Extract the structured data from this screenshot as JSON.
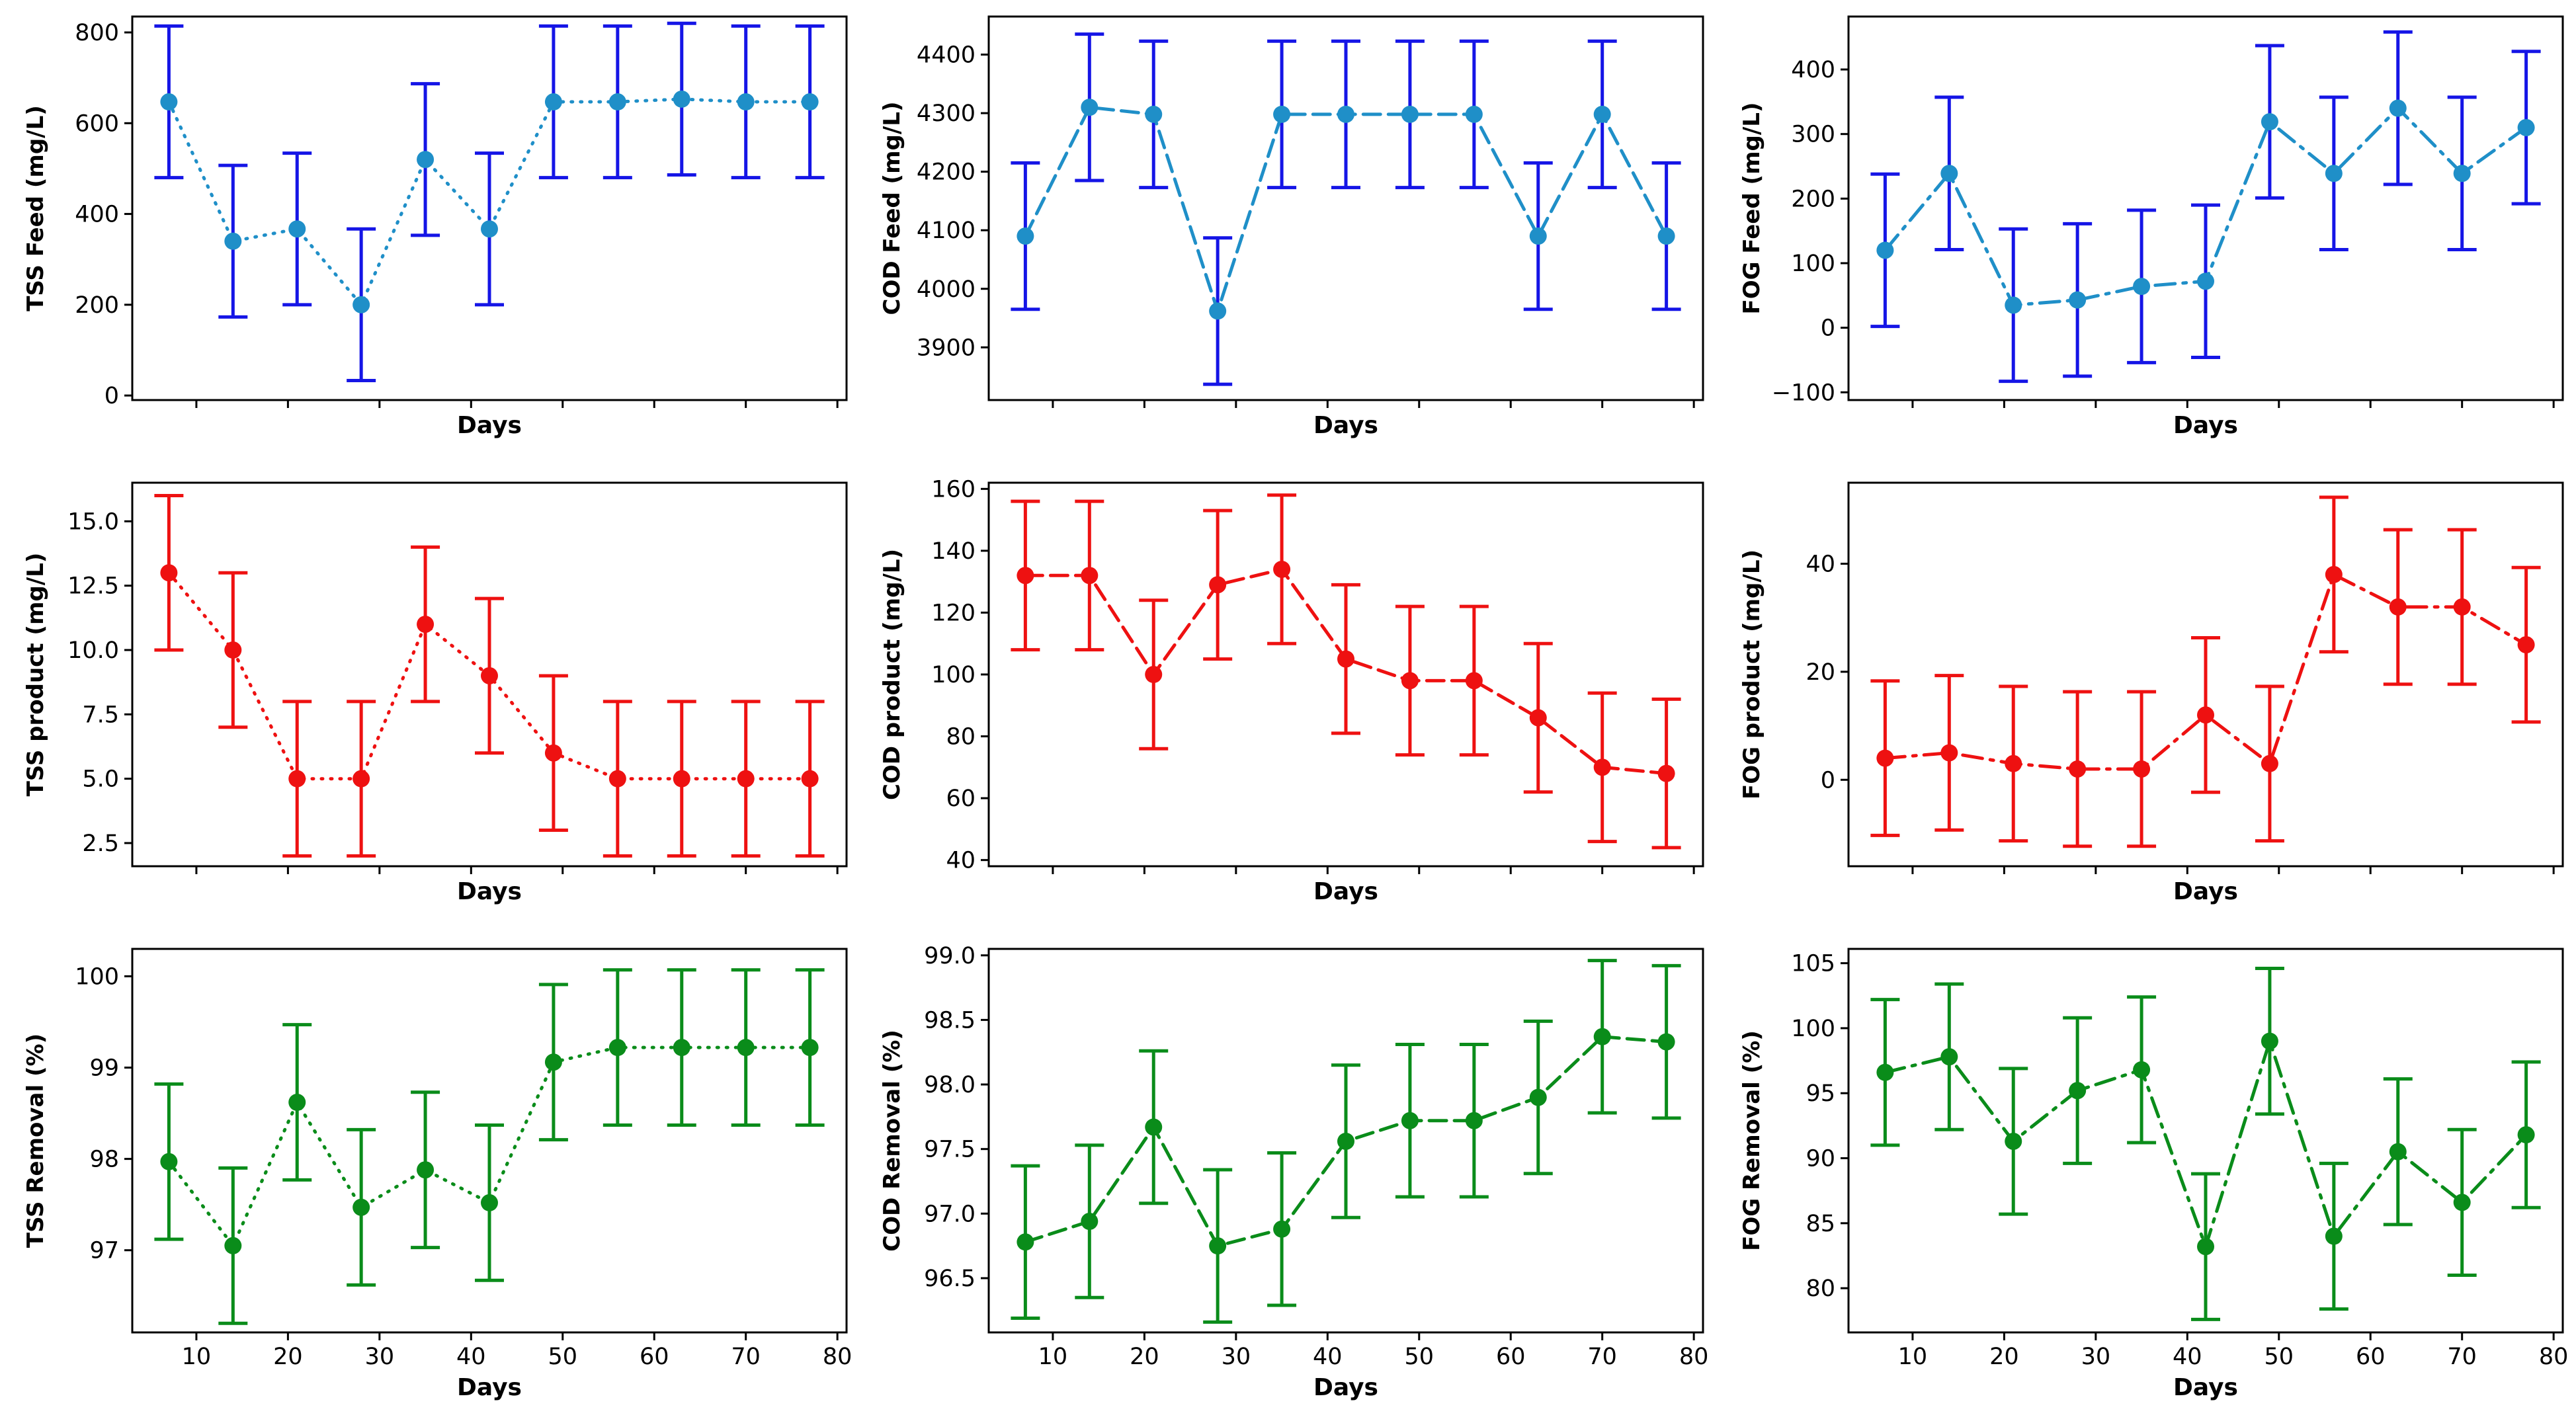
{
  "figure": {
    "x_shared_label": "Days"
  },
  "chart_data": [
    {
      "type": "line",
      "title": "",
      "xlabel": "Days",
      "ylabel": "TSS Feed (mg/L)",
      "xlim": [
        3,
        81
      ],
      "ylim": [
        -10,
        835
      ],
      "xticks": [
        10,
        20,
        30,
        40,
        50,
        60,
        70,
        80
      ],
      "yticks": [
        0,
        200,
        400,
        600,
        800
      ],
      "ytick_labels": [
        "0",
        "200",
        "400",
        "600",
        "800"
      ],
      "x": [
        7,
        14,
        21,
        28,
        35,
        42,
        49,
        56,
        63,
        70,
        77
      ],
      "values": [
        647,
        340,
        367,
        200,
        520,
        367,
        647,
        647,
        653,
        647,
        647
      ],
      "errors": [
        167,
        167,
        167,
        167,
        167,
        167,
        167,
        167,
        167,
        167,
        167
      ],
      "line_color": "#1f8fc8",
      "error_color": "#1515e6",
      "dash": "dotted"
    },
    {
      "type": "line",
      "title": "",
      "xlabel": "Days",
      "ylabel": "COD Feed (mg/L)",
      "xlim": [
        3,
        81
      ],
      "ylim": [
        3810,
        4465
      ],
      "xticks": [
        10,
        20,
        30,
        40,
        50,
        60,
        70,
        80
      ],
      "yticks": [
        3900,
        4000,
        4100,
        4200,
        4300,
        4400
      ],
      "ytick_labels": [
        "3900",
        "4000",
        "4100",
        "4200",
        "4300",
        "4400"
      ],
      "x": [
        7,
        14,
        21,
        28,
        35,
        42,
        49,
        56,
        63,
        70,
        77
      ],
      "values": [
        4090,
        4310,
        4298,
        3962,
        4298,
        4298,
        4298,
        4298,
        4090,
        4298,
        4090
      ],
      "errors": [
        125,
        125,
        125,
        125,
        125,
        125,
        125,
        125,
        125,
        125,
        125
      ],
      "line_color": "#1f8fc8",
      "error_color": "#1515e6",
      "dash": "dashed"
    },
    {
      "type": "line",
      "title": "",
      "xlabel": "Days",
      "ylabel": "FOG Feed (mg/L)",
      "xlim": [
        3,
        81
      ],
      "ylim": [
        -112,
        482
      ],
      "xticks": [
        10,
        20,
        30,
        40,
        50,
        60,
        70,
        80
      ],
      "yticks": [
        -100,
        0,
        100,
        200,
        300,
        400
      ],
      "ytick_labels": [
        "−100",
        "0",
        "100",
        "200",
        "300",
        "400"
      ],
      "x": [
        7,
        14,
        21,
        28,
        35,
        42,
        49,
        56,
        63,
        70,
        77
      ],
      "values": [
        120,
        239,
        35,
        43,
        64,
        72,
        319,
        239,
        340,
        239,
        310
      ],
      "errors": [
        118,
        118,
        118,
        118,
        118,
        118,
        118,
        118,
        118,
        118,
        118
      ],
      "line_color": "#1f8fc8",
      "error_color": "#1515e6",
      "dash": "dashdot"
    },
    {
      "type": "line",
      "title": "",
      "xlabel": "Days",
      "ylabel": "TSS product (mg/L)",
      "xlim": [
        3,
        81
      ],
      "ylim": [
        1.6,
        16.5
      ],
      "xticks": [
        10,
        20,
        30,
        40,
        50,
        60,
        70,
        80
      ],
      "yticks": [
        2.5,
        5.0,
        7.5,
        10.0,
        12.5,
        15.0
      ],
      "ytick_labels": [
        "2.5",
        "5.0",
        "7.5",
        "10.0",
        "12.5",
        "15.0"
      ],
      "x": [
        7,
        14,
        21,
        28,
        35,
        42,
        49,
        56,
        63,
        70,
        77
      ],
      "values": [
        13,
        10,
        5,
        5,
        11,
        9,
        6,
        5,
        5,
        5,
        5
      ],
      "errors": [
        3,
        3,
        3,
        3,
        3,
        3,
        3,
        3,
        3,
        3,
        3
      ],
      "line_color": "#ee1111",
      "error_color": "#ee1111",
      "dash": "dotted"
    },
    {
      "type": "line",
      "title": "",
      "xlabel": "Days",
      "ylabel": "COD product (mg/L)",
      "xlim": [
        3,
        81
      ],
      "ylim": [
        38,
        162
      ],
      "xticks": [
        10,
        20,
        30,
        40,
        50,
        60,
        70,
        80
      ],
      "yticks": [
        40,
        60,
        80,
        100,
        120,
        140,
        160
      ],
      "ytick_labels": [
        "40",
        "60",
        "80",
        "100",
        "120",
        "140",
        "160"
      ],
      "x": [
        7,
        14,
        21,
        28,
        35,
        42,
        49,
        56,
        63,
        70,
        77
      ],
      "values": [
        132,
        132,
        100,
        129,
        134,
        105,
        98,
        98,
        86,
        70,
        68
      ],
      "errors": [
        24,
        24,
        24,
        24,
        24,
        24,
        24,
        24,
        24,
        24,
        24
      ],
      "line_color": "#ee1111",
      "error_color": "#ee1111",
      "dash": "dashed"
    },
    {
      "type": "line",
      "title": "",
      "xlabel": "Days",
      "ylabel": "FOG product (mg/L)",
      "xlim": [
        3,
        81
      ],
      "ylim": [
        -16,
        55
      ],
      "xticks": [
        10,
        20,
        30,
        40,
        50,
        60,
        70,
        80
      ],
      "yticks": [
        0,
        20,
        40
      ],
      "ytick_labels": [
        "0",
        "20",
        "40"
      ],
      "x": [
        7,
        14,
        21,
        28,
        35,
        42,
        49,
        56,
        63,
        70,
        77
      ],
      "values": [
        4,
        5,
        3,
        2,
        2,
        12,
        3,
        38,
        32,
        32,
        25
      ],
      "errors": [
        14.3,
        14.3,
        14.3,
        14.3,
        14.3,
        14.3,
        14.3,
        14.3,
        14.3,
        14.3,
        14.3
      ],
      "line_color": "#ee1111",
      "error_color": "#ee1111",
      "dash": "dashdot"
    },
    {
      "type": "line",
      "title": "",
      "xlabel": "Days",
      "ylabel": "TSS Removal (%)",
      "xlim": [
        3,
        81
      ],
      "ylim": [
        96.1,
        100.3
      ],
      "xticks": [
        10,
        20,
        30,
        40,
        50,
        60,
        70,
        80
      ],
      "yticks": [
        97,
        98,
        99,
        100
      ],
      "ytick_labels": [
        "97",
        "98",
        "99",
        "100"
      ],
      "x": [
        7,
        14,
        21,
        28,
        35,
        42,
        49,
        56,
        63,
        70,
        77
      ],
      "values": [
        97.97,
        97.05,
        98.62,
        97.47,
        97.88,
        97.52,
        99.06,
        99.22,
        99.22,
        99.22,
        99.22
      ],
      "errors": [
        0.85,
        0.85,
        0.85,
        0.85,
        0.85,
        0.85,
        0.85,
        0.85,
        0.85,
        0.85,
        0.85
      ],
      "line_color": "#0a8c1a",
      "error_color": "#0a8c1a",
      "dash": "dotted"
    },
    {
      "type": "line",
      "title": "",
      "xlabel": "Days",
      "ylabel": "COD Removal (%)",
      "xlim": [
        3,
        81
      ],
      "ylim": [
        96.08,
        99.05
      ],
      "xticks": [
        10,
        20,
        30,
        40,
        50,
        60,
        70,
        80
      ],
      "yticks": [
        96.5,
        97.0,
        97.5,
        98.0,
        98.5,
        99.0
      ],
      "ytick_labels": [
        "96.5",
        "97.0",
        "97.5",
        "98.0",
        "98.5",
        "99.0"
      ],
      "x": [
        7,
        14,
        21,
        28,
        35,
        42,
        49,
        56,
        63,
        70,
        77
      ],
      "values": [
        96.78,
        96.94,
        97.67,
        96.75,
        96.88,
        97.56,
        97.72,
        97.72,
        97.9,
        98.37,
        98.33
      ],
      "errors": [
        0.59,
        0.59,
        0.59,
        0.59,
        0.59,
        0.59,
        0.59,
        0.59,
        0.59,
        0.59,
        0.59
      ],
      "line_color": "#0a8c1a",
      "error_color": "#0a8c1a",
      "dash": "dashed"
    },
    {
      "type": "line",
      "title": "",
      "xlabel": "Days",
      "ylabel": "FOG Removal (%)",
      "xlim": [
        3,
        81
      ],
      "ylim": [
        76.6,
        106.1
      ],
      "xticks": [
        10,
        20,
        30,
        40,
        50,
        60,
        70,
        80
      ],
      "yticks": [
        80,
        85,
        90,
        95,
        100,
        105
      ],
      "ytick_labels": [
        "80",
        "85",
        "90",
        "95",
        "100",
        "105"
      ],
      "x": [
        7,
        14,
        21,
        28,
        35,
        42,
        49,
        56,
        63,
        70,
        77
      ],
      "values": [
        96.6,
        97.8,
        91.3,
        95.2,
        96.8,
        83.2,
        99.0,
        84.0,
        90.5,
        86.6,
        91.8
      ],
      "errors": [
        5.6,
        5.6,
        5.6,
        5.6,
        5.6,
        5.6,
        5.6,
        5.6,
        5.6,
        5.6,
        5.6
      ],
      "line_color": "#0a8c1a",
      "error_color": "#0a8c1a",
      "dash": "dashdot"
    }
  ]
}
